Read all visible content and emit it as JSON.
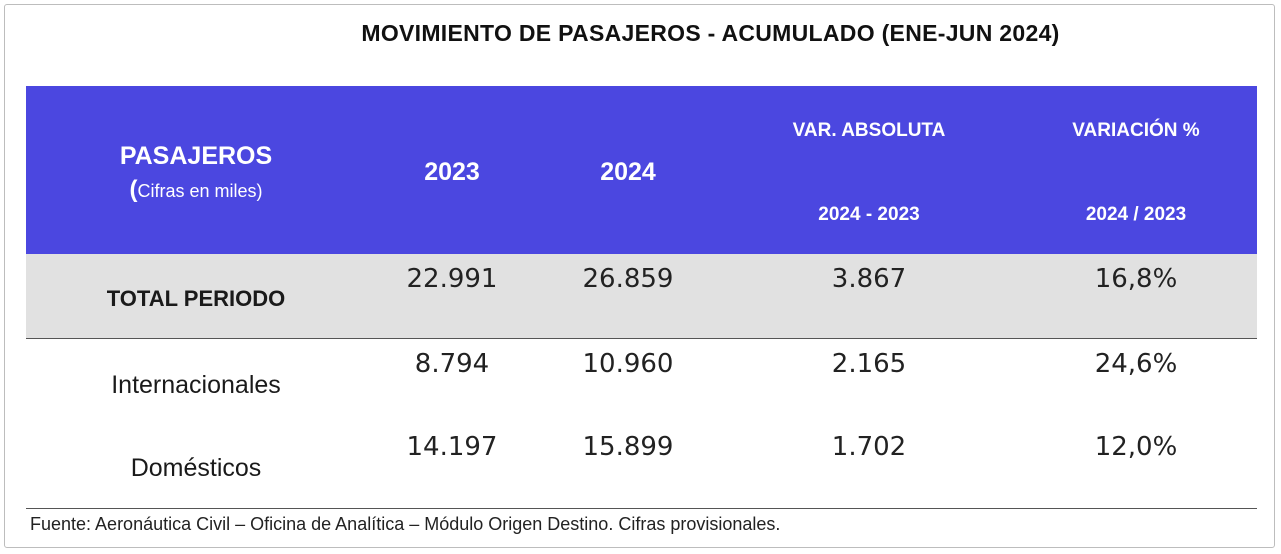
{
  "title": "MOVIMIENTO DE PASAJEROS - ACUMULADO (ENE-JUN 2024)",
  "header": {
    "col1_main": "PASAJEROS",
    "col1_paren": "(",
    "col1_sub": "Cifras en miles)",
    "col2": "2023",
    "col3": "2024",
    "col4_main": "VAR. ABSOLUTA",
    "col4_sub": "2024 - 2023",
    "col5_main": "VARIACIÓN %",
    "col5_sub": "2024 / 2023",
    "background_color": "#4b47e0"
  },
  "rows": [
    {
      "label": "TOTAL PERIODO",
      "v2023": "22.991",
      "v2024": "26.859",
      "var_abs": "3.867",
      "var_pct": "16,8%"
    },
    {
      "label": "Internacionales",
      "v2023": "8.794",
      "v2024": "10.960",
      "var_abs": "2.165",
      "var_pct": "24,6%"
    },
    {
      "label": "Domésticos",
      "v2023": "14.197",
      "v2024": "15.899",
      "var_abs": "1.702",
      "var_pct": "12,0%"
    }
  ],
  "footer": "Fuente: Aeronáutica Civil – Oficina de Analítica – Módulo Origen Destino. Cifras provisionales."
}
